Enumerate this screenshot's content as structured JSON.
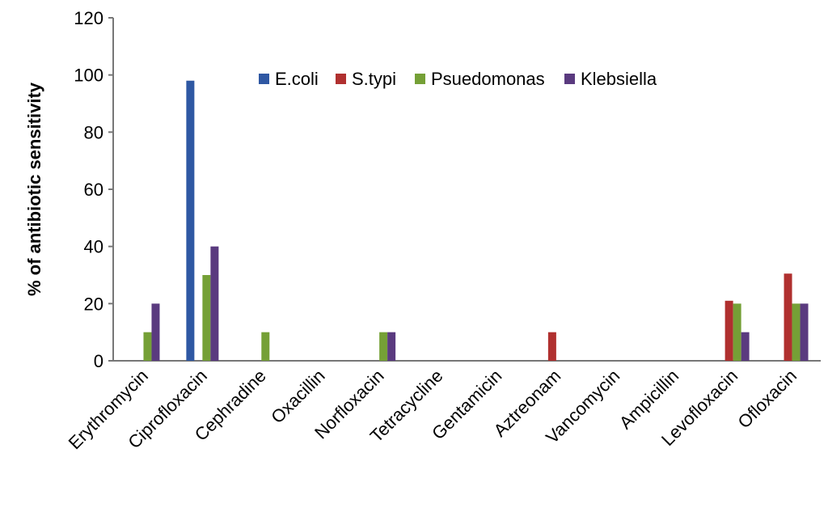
{
  "chart_data": {
    "type": "bar",
    "title": "",
    "xlabel": "",
    "ylabel": "% of antibiotic sensitivity",
    "ylim": [
      0,
      120
    ],
    "yticks": [
      0,
      20,
      40,
      60,
      80,
      100,
      120
    ],
    "grid": false,
    "legend_placement": "top",
    "categories": [
      "Erythromycin",
      "Ciprofloxacin",
      "Cephradine",
      "Oxacillin",
      "Norfloxacin",
      "Tetracycline",
      "Gentamicin",
      "Aztreonam",
      "Vancomycin",
      "Ampicillin",
      "Levofloxacin",
      "Ofloxacin"
    ],
    "series": [
      {
        "name": "E.coli",
        "color": "#2f58a3",
        "values": [
          0,
          98,
          0,
          0,
          0,
          0,
          0,
          0,
          0,
          0,
          0,
          0
        ]
      },
      {
        "name": "S.typi",
        "color": "#b0302f",
        "values": [
          0,
          0,
          0,
          0,
          0,
          0,
          0,
          10,
          0,
          0,
          21,
          30.5
        ]
      },
      {
        "name": "Psuedomonas",
        "color": "#75a036",
        "values": [
          10,
          30,
          10,
          0,
          10,
          0,
          0,
          0,
          0,
          0,
          20,
          20
        ]
      },
      {
        "name": "Klebsiella",
        "color": "#5a3a7f",
        "values": [
          20,
          40,
          0,
          0,
          10,
          0,
          0,
          0,
          0,
          0,
          10,
          20
        ]
      }
    ]
  }
}
